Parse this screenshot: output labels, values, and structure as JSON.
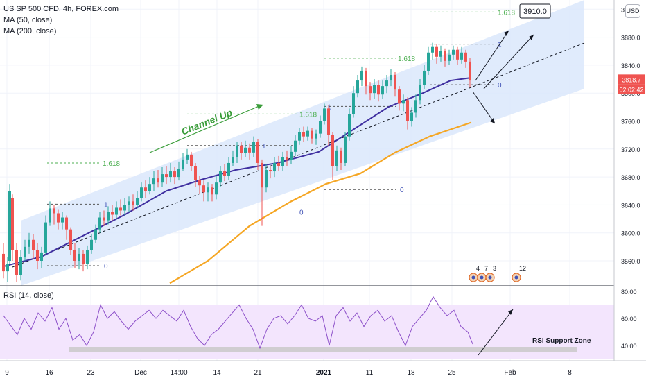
{
  "header": {
    "symbol_line": "US SP 500 CFD, 4h, FOREX.com",
    "ma50": "MA (50, close)",
    "ma200": "MA (200, close)",
    "currency_button": "USD"
  },
  "price_axis": {
    "ticks": [
      3920,
      3880,
      3840,
      3800,
      3760,
      3720,
      3680,
      3640,
      3600,
      3560
    ],
    "tick_labels": [
      "3920.0",
      "3880.0",
      "3840.0",
      "3800.0",
      "3760.0",
      "3720.0",
      "3680.0",
      "3640.0",
      "3600.0",
      "3560.0"
    ],
    "current_price_label": "3818.7",
    "countdown_label": "02:02:42"
  },
  "rsi_axis": {
    "ticks": [
      80,
      60,
      40
    ],
    "tick_labels": [
      "80.00",
      "60.00",
      "40.00"
    ]
  },
  "time_axis": {
    "labels": [
      "9",
      "16",
      "23",
      "Dec",
      "14:00",
      "14",
      "21",
      "2021",
      "11",
      "18",
      "25",
      "Feb",
      "8"
    ]
  },
  "annotations": {
    "channel_label": "Channel Up",
    "target_label": "3910.0",
    "rsi_support_label": "RSI Support Zone",
    "rsi_indicator_label": "RSI (14, close)",
    "fib_high": "1.618",
    "fib_one": "1",
    "fib_zero": "0",
    "event_a": "4",
    "event_b": "7",
    "event_c": "3",
    "event_d": "12"
  },
  "colors": {
    "up": "#26a69a",
    "down": "#ef5350",
    "ma50": "#3f2fa0",
    "ma200": "#f5a623",
    "channel": "#dbe8fb",
    "rsi_line": "#8c4fc9",
    "rsi_band": "#f3e5fd",
    "fib": "#4caf50"
  },
  "chart_data": {
    "type": "candlestick",
    "x_range": [
      "Nov 9 2020",
      "Feb 10 2021"
    ],
    "ylim": [
      3528,
      3948
    ],
    "ma50": [
      [
        5,
        3552
      ],
      [
        60,
        3566
      ],
      [
        120,
        3596
      ],
      [
        180,
        3626
      ],
      [
        240,
        3660
      ],
      [
        290,
        3676
      ],
      [
        340,
        3690
      ],
      [
        400,
        3700
      ],
      [
        460,
        3716
      ],
      [
        510,
        3748
      ],
      [
        560,
        3780
      ],
      [
        610,
        3800
      ],
      [
        650,
        3818
      ],
      [
        680,
        3822
      ]
    ],
    "ma200": [
      [
        245,
        3528
      ],
      [
        300,
        3560
      ],
      [
        360,
        3610
      ],
      [
        420,
        3645
      ],
      [
        470,
        3670
      ],
      [
        520,
        3685
      ],
      [
        570,
        3715
      ],
      [
        620,
        3738
      ],
      [
        680,
        3758
      ]
    ],
    "rsi": {
      "overbought": 70,
      "oversold": 30,
      "support_zone": [
        35,
        40
      ],
      "values": [
        [
          5,
          62
        ],
        [
          15,
          55
        ],
        [
          25,
          48
        ],
        [
          35,
          60
        ],
        [
          45,
          52
        ],
        [
          55,
          64
        ],
        [
          65,
          58
        ],
        [
          75,
          68
        ],
        [
          85,
          52
        ],
        [
          95,
          60
        ],
        [
          105,
          44
        ],
        [
          115,
          48
        ],
        [
          125,
          40
        ],
        [
          135,
          50
        ],
        [
          145,
          70
        ],
        [
          155,
          60
        ],
        [
          165,
          65
        ],
        [
          175,
          58
        ],
        [
          185,
          52
        ],
        [
          195,
          58
        ],
        [
          205,
          62
        ],
        [
          215,
          66
        ],
        [
          225,
          60
        ],
        [
          235,
          66
        ],
        [
          245,
          62
        ],
        [
          255,
          58
        ],
        [
          265,
          66
        ],
        [
          275,
          54
        ],
        [
          285,
          45
        ],
        [
          295,
          40
        ],
        [
          305,
          48
        ],
        [
          315,
          52
        ],
        [
          325,
          58
        ],
        [
          335,
          64
        ],
        [
          345,
          70
        ],
        [
          355,
          60
        ],
        [
          365,
          52
        ],
        [
          375,
          38
        ],
        [
          385,
          52
        ],
        [
          395,
          60
        ],
        [
          405,
          62
        ],
        [
          415,
          56
        ],
        [
          425,
          62
        ],
        [
          435,
          70
        ],
        [
          445,
          60
        ],
        [
          455,
          58
        ],
        [
          465,
          62
        ],
        [
          475,
          40
        ],
        [
          485,
          62
        ],
        [
          495,
          68
        ],
        [
          505,
          58
        ],
        [
          515,
          64
        ],
        [
          525,
          54
        ],
        [
          535,
          62
        ],
        [
          545,
          66
        ],
        [
          555,
          58
        ],
        [
          565,
          62
        ],
        [
          575,
          50
        ],
        [
          585,
          40
        ],
        [
          595,
          54
        ],
        [
          605,
          60
        ],
        [
          615,
          66
        ],
        [
          625,
          76
        ],
        [
          635,
          68
        ],
        [
          645,
          62
        ],
        [
          655,
          66
        ],
        [
          665,
          54
        ],
        [
          675,
          50
        ],
        [
          682,
          41
        ]
      ]
    },
    "candles": [
      [
        5,
        3570,
        3545,
        3585,
        3535
      ],
      [
        11,
        3545,
        3555,
        3565,
        3530
      ],
      [
        14,
        3560,
        3660,
        3670,
        3555
      ],
      [
        18,
        3650,
        3575,
        3655,
        3560
      ],
      [
        24,
        3575,
        3540,
        3585,
        3530
      ],
      [
        30,
        3540,
        3565,
        3575,
        3532
      ],
      [
        36,
        3565,
        3580,
        3590,
        3560
      ],
      [
        42,
        3580,
        3590,
        3600,
        3570
      ],
      [
        48,
        3590,
        3575,
        3598,
        3562
      ],
      [
        54,
        3575,
        3560,
        3585,
        3548
      ],
      [
        60,
        3560,
        3572,
        3580,
        3550
      ],
      [
        66,
        3572,
        3615,
        3625,
        3568
      ],
      [
        72,
        3615,
        3635,
        3645,
        3610
      ],
      [
        78,
        3635,
        3628,
        3640,
        3612
      ],
      [
        84,
        3628,
        3615,
        3633,
        3605
      ],
      [
        90,
        3615,
        3622,
        3630,
        3605
      ],
      [
        96,
        3622,
        3605,
        3625,
        3590
      ],
      [
        102,
        3605,
        3575,
        3608,
        3568
      ],
      [
        108,
        3575,
        3560,
        3585,
        3550
      ],
      [
        114,
        3560,
        3570,
        3578,
        3548
      ],
      [
        120,
        3570,
        3555,
        3575,
        3545
      ],
      [
        126,
        3555,
        3575,
        3582,
        3548
      ],
      [
        132,
        3575,
        3590,
        3598,
        3570
      ],
      [
        138,
        3590,
        3605,
        3612,
        3585
      ],
      [
        144,
        3605,
        3622,
        3630,
        3600
      ],
      [
        150,
        3622,
        3618,
        3632,
        3610
      ],
      [
        156,
        3618,
        3630,
        3638,
        3612
      ],
      [
        162,
        3630,
        3626,
        3640,
        3618
      ],
      [
        168,
        3626,
        3636,
        3645,
        3620
      ],
      [
        174,
        3636,
        3632,
        3648,
        3625
      ],
      [
        180,
        3632,
        3640,
        3650,
        3625
      ],
      [
        186,
        3640,
        3645,
        3652,
        3630
      ],
      [
        192,
        3645,
        3640,
        3655,
        3632
      ],
      [
        198,
        3640,
        3650,
        3660,
        3635
      ],
      [
        204,
        3650,
        3665,
        3672,
        3645
      ],
      [
        210,
        3665,
        3660,
        3675,
        3650
      ],
      [
        216,
        3660,
        3670,
        3680,
        3655
      ],
      [
        222,
        3670,
        3678,
        3688,
        3660
      ],
      [
        228,
        3678,
        3672,
        3690,
        3665
      ],
      [
        234,
        3672,
        3684,
        3694,
        3666
      ],
      [
        240,
        3684,
        3680,
        3695,
        3670
      ],
      [
        246,
        3680,
        3688,
        3700,
        3672
      ],
      [
        252,
        3688,
        3680,
        3694,
        3670
      ],
      [
        258,
        3680,
        3692,
        3702,
        3675
      ],
      [
        264,
        3692,
        3705,
        3714,
        3688
      ],
      [
        270,
        3705,
        3712,
        3720,
        3698
      ],
      [
        276,
        3712,
        3695,
        3716,
        3688
      ],
      [
        282,
        3695,
        3676,
        3700,
        3666
      ],
      [
        288,
        3676,
        3668,
        3682,
        3656
      ],
      [
        294,
        3668,
        3658,
        3675,
        3645
      ],
      [
        300,
        3658,
        3665,
        3672,
        3645
      ],
      [
        306,
        3665,
        3655,
        3670,
        3645
      ],
      [
        312,
        3655,
        3672,
        3682,
        3648
      ],
      [
        318,
        3672,
        3688,
        3695,
        3666
      ],
      [
        324,
        3688,
        3682,
        3698,
        3674
      ],
      [
        330,
        3682,
        3700,
        3708,
        3676
      ],
      [
        336,
        3700,
        3708,
        3718,
        3695
      ],
      [
        342,
        3708,
        3725,
        3730,
        3700
      ],
      [
        348,
        3725,
        3714,
        3730,
        3705
      ],
      [
        354,
        3714,
        3722,
        3732,
        3708
      ],
      [
        360,
        3722,
        3715,
        3728,
        3705
      ],
      [
        366,
        3715,
        3730,
        3738,
        3708
      ],
      [
        372,
        3730,
        3700,
        3734,
        3690
      ],
      [
        378,
        3700,
        3665,
        3705,
        3610
      ],
      [
        384,
        3665,
        3690,
        3698,
        3658
      ],
      [
        390,
        3690,
        3688,
        3696,
        3678
      ],
      [
        396,
        3688,
        3700,
        3708,
        3680
      ],
      [
        402,
        3700,
        3695,
        3710,
        3688
      ],
      [
        408,
        3695,
        3708,
        3716,
        3688
      ],
      [
        414,
        3708,
        3704,
        3718,
        3696
      ],
      [
        420,
        3704,
        3716,
        3724,
        3698
      ],
      [
        426,
        3716,
        3732,
        3740,
        3710
      ],
      [
        432,
        3732,
        3744,
        3750,
        3726
      ],
      [
        438,
        3744,
        3738,
        3752,
        3730
      ],
      [
        444,
        3738,
        3746,
        3752,
        3732
      ],
      [
        450,
        3746,
        3735,
        3750,
        3728
      ],
      [
        456,
        3735,
        3742,
        3748,
        3726
      ],
      [
        462,
        3742,
        3760,
        3768,
        3736
      ],
      [
        468,
        3760,
        3778,
        3785,
        3755
      ],
      [
        474,
        3778,
        3740,
        3782,
        3725
      ],
      [
        480,
        3740,
        3695,
        3744,
        3676
      ],
      [
        486,
        3695,
        3718,
        3725,
        3688
      ],
      [
        492,
        3718,
        3700,
        3722,
        3690
      ],
      [
        498,
        3700,
        3738,
        3744,
        3695
      ],
      [
        504,
        3738,
        3770,
        3778,
        3732
      ],
      [
        510,
        3770,
        3800,
        3810,
        3765
      ],
      [
        516,
        3800,
        3818,
        3826,
        3794
      ],
      [
        522,
        3818,
        3832,
        3838,
        3810
      ],
      [
        528,
        3832,
        3810,
        3836,
        3798
      ],
      [
        534,
        3810,
        3800,
        3816,
        3790
      ],
      [
        540,
        3800,
        3812,
        3820,
        3792
      ],
      [
        546,
        3812,
        3798,
        3818,
        3788
      ],
      [
        552,
        3798,
        3810,
        3818,
        3792
      ],
      [
        558,
        3810,
        3818,
        3826,
        3800
      ],
      [
        564,
        3818,
        3826,
        3834,
        3810
      ],
      [
        570,
        3826,
        3805,
        3830,
        3795
      ],
      [
        576,
        3805,
        3785,
        3810,
        3775
      ],
      [
        582,
        3785,
        3790,
        3798,
        3774
      ],
      [
        588,
        3790,
        3760,
        3794,
        3748
      ],
      [
        594,
        3760,
        3772,
        3780,
        3752
      ],
      [
        600,
        3772,
        3790,
        3798,
        3765
      ],
      [
        606,
        3790,
        3812,
        3820,
        3784
      ],
      [
        612,
        3812,
        3832,
        3840,
        3806
      ],
      [
        618,
        3832,
        3858,
        3866,
        3826
      ],
      [
        624,
        3858,
        3866,
        3872,
        3848
      ],
      [
        630,
        3866,
        3852,
        3870,
        3842
      ],
      [
        636,
        3852,
        3860,
        3868,
        3845
      ],
      [
        642,
        3860,
        3846,
        3864,
        3838
      ],
      [
        648,
        3846,
        3855,
        3862,
        3840
      ],
      [
        654,
        3855,
        3862,
        3868,
        3848
      ],
      [
        660,
        3862,
        3848,
        3866,
        3840
      ],
      [
        666,
        3848,
        3858,
        3866,
        3842
      ],
      [
        672,
        3858,
        3845,
        3862,
        3836
      ],
      [
        678,
        3845,
        3818,
        3850,
        3808
      ]
    ]
  }
}
